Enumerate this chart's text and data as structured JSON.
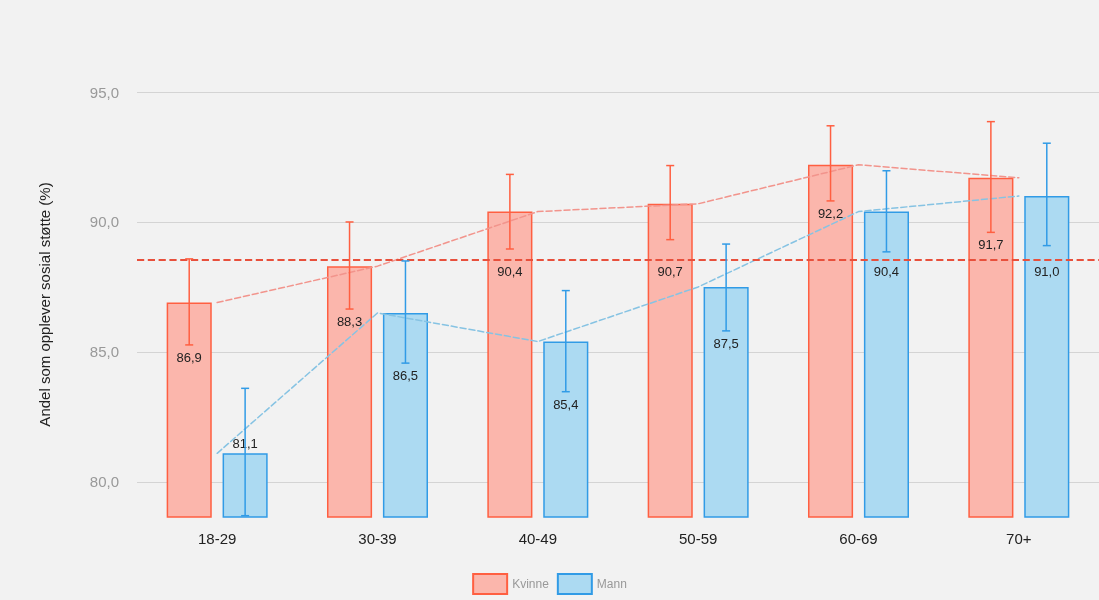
{
  "chart_data": {
    "type": "bar",
    "ylabel": "Andel som opplever sosial støtte (%)",
    "categories": [
      "18-29",
      "30-39",
      "40-49",
      "50-59",
      "60-69",
      "70+"
    ],
    "series": [
      {
        "name": "Kvinne",
        "color": "#fbb6ac",
        "values": [
          86.9,
          88.3,
          90.4,
          90.7,
          92.2,
          91.7
        ],
        "value_labels": [
          "86,9",
          "88,3",
          "90,4",
          "90,7",
          "92,2",
          "91,7"
        ],
        "errors": [
          [
            85.27,
            88.58
          ],
          [
            86.65,
            90.0
          ],
          [
            88.96,
            91.83
          ],
          [
            89.32,
            92.17
          ],
          [
            90.81,
            93.7
          ],
          [
            89.6,
            93.86
          ]
        ]
      },
      {
        "name": "Mann",
        "color": "#acdaf2",
        "values": [
          81.1,
          86.5,
          85.4,
          87.5,
          90.4,
          91.0
        ],
        "value_labels": [
          "81,1",
          "86,5",
          "85,4",
          "87,5",
          "90,4",
          "91,0"
        ],
        "errors": [
          [
            78.7,
            83.6
          ],
          [
            84.57,
            88.5
          ],
          [
            83.47,
            87.36
          ],
          [
            85.81,
            89.15
          ],
          [
            88.85,
            91.97
          ],
          [
            89.09,
            93.03
          ]
        ]
      },
      {
        "type": "line",
        "color": "#f2948c",
        "values": [
          86.9,
          88.3,
          90.4,
          90.7,
          92.2,
          91.7
        ],
        "line_style": "dashed",
        "marker": "none"
      },
      {
        "type": "line",
        "color": "#86c3e3",
        "values": [
          81.1,
          86.5,
          85.4,
          87.5,
          90.4,
          91.0
        ],
        "line_style": "dashed",
        "marker": "none"
      }
    ],
    "ylim": [
      78.65,
      95
    ],
    "yticks": [
      {
        "value": 80,
        "label": "80,0"
      },
      {
        "value": 85,
        "label": "85,0"
      },
      {
        "value": 90,
        "label": "90,0"
      },
      {
        "value": 95,
        "label": "95,0"
      }
    ],
    "ref_lines": [
      {
        "axis": "y",
        "value": 88.54,
        "color": "#e8503c",
        "line_style": "dashed"
      }
    ],
    "grid": "y",
    "legend": "bottom"
  }
}
